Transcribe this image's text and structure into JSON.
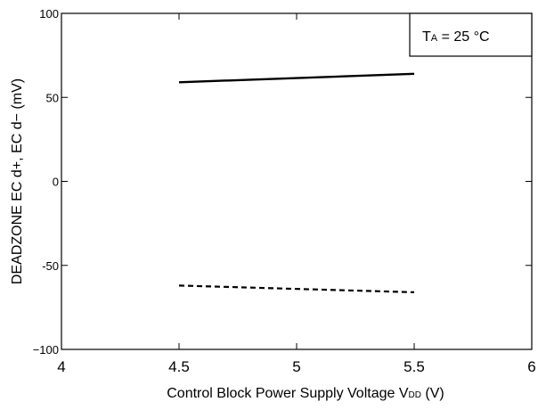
{
  "chart_data": {
    "type": "line",
    "xlabel_main": "Control Block Power Supply Voltage  V",
    "xlabel_sub": "DD",
    "xlabel_unit": " (V)",
    "ylabel": "DEADZONE EC d+, EC d−  (mV)",
    "xlim": [
      4,
      6
    ],
    "ylim": [
      -100,
      100
    ],
    "x_ticks": [
      4,
      4.5,
      5,
      5.5,
      6
    ],
    "x_tick_labels": [
      "4",
      "4.5",
      "5",
      "5.5",
      "6"
    ],
    "y_ticks": [
      100,
      50,
      0,
      -50,
      -100
    ],
    "y_tick_labels": [
      "100",
      "50",
      "0",
      "-50",
      "−100"
    ],
    "annotation": {
      "main": "T",
      "sub": "A",
      "rest": " = 25 °C",
      "placement": "top-right"
    },
    "grid": false,
    "series": [
      {
        "style": "solid",
        "color": "#000000",
        "x": [
          4.5,
          5.5
        ],
        "y": [
          59,
          64
        ]
      },
      {
        "style": "dashed",
        "color": "#000000",
        "x": [
          4.5,
          5.5
        ],
        "y": [
          -62,
          -66
        ]
      }
    ]
  }
}
